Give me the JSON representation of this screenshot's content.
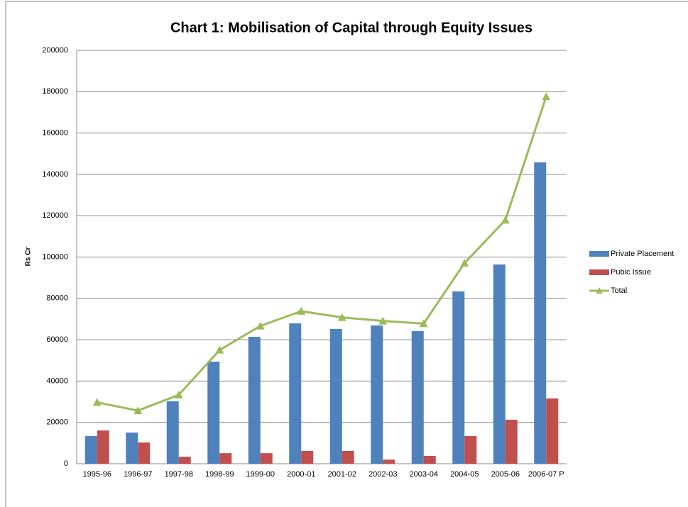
{
  "chart_data": {
    "type": "bar",
    "title": "Chart 1: Mobilisation of Capital through Equity Issues",
    "y_label": "Rs Cr",
    "categories": [
      "1995-96",
      "1996-97",
      "1997-98",
      "1998-99",
      "1999-00",
      "2000-01",
      "2001-02",
      "2002-03",
      "2003-04",
      "2004-05",
      "2005-06",
      "2006-07 P"
    ],
    "series": [
      {
        "name": "Private Placement",
        "color": "#4f81bd",
        "type": "bar",
        "values": [
          13400,
          15100,
          30200,
          49400,
          61400,
          67900,
          65200,
          66900,
          64200,
          83400,
          96400,
          145800
        ]
      },
      {
        "name": "Pubic Issue",
        "color": "#c0504d",
        "type": "bar",
        "values": [
          16100,
          10300,
          3400,
          5100,
          5100,
          6200,
          6200,
          2000,
          3800,
          13400,
          21300,
          31600
        ]
      },
      {
        "name": "Total",
        "color": "#9bbb59",
        "type": "line",
        "values": [
          29700,
          25700,
          33300,
          55000,
          66700,
          73800,
          70800,
          69100,
          67800,
          97100,
          117900,
          177600
        ]
      }
    ],
    "ylim": [
      0,
      200000
    ],
    "yticks": [
      0,
      20000,
      40000,
      60000,
      80000,
      100000,
      120000,
      140000,
      160000,
      180000,
      200000
    ],
    "grid": true,
    "legend": "right"
  }
}
